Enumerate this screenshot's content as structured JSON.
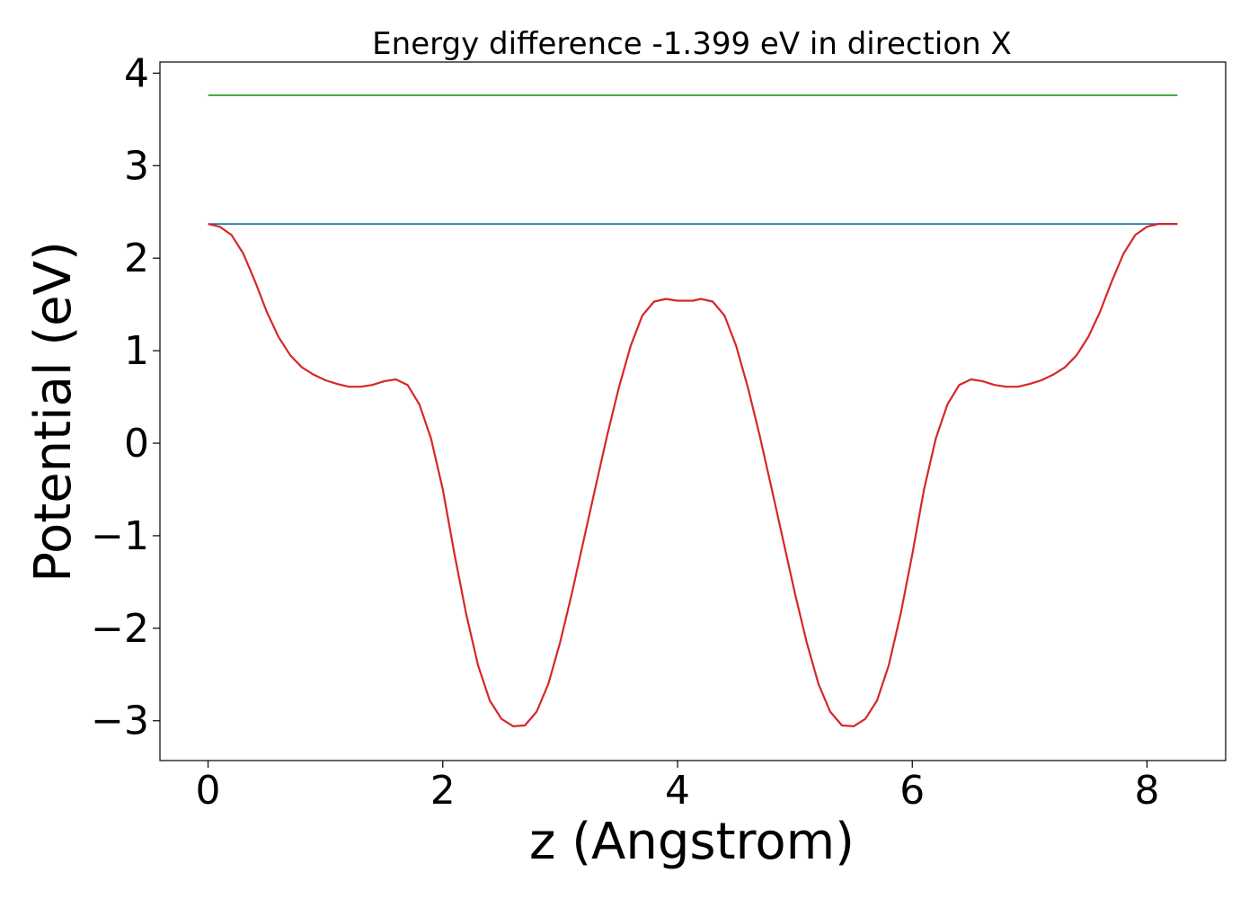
{
  "chart_data": {
    "type": "line",
    "title": "Energy difference -1.399 eV in direction X",
    "xlabel": "z (Angstrom)",
    "ylabel": "Potential (eV)",
    "xlim": [
      -0.41,
      8.67
    ],
    "ylim": [
      -3.43,
      4.12
    ],
    "xticks": [
      0,
      2,
      4,
      6,
      8
    ],
    "yticks": [
      -3,
      -2,
      -1,
      0,
      1,
      2,
      3,
      4
    ],
    "xtick_labels": [
      "0",
      "2",
      "4",
      "6",
      "8"
    ],
    "ytick_labels": [
      "−3",
      "−2",
      "−1",
      "0",
      "1",
      "2",
      "3",
      "4"
    ],
    "grid": false,
    "series": [
      {
        "color": "#2ca02c",
        "x": [
          0,
          8.26
        ],
        "y": [
          3.76,
          3.76
        ]
      },
      {
        "color": "#1f77b4",
        "x": [
          0,
          8.26
        ],
        "y": [
          2.37,
          2.37
        ]
      },
      {
        "color": "#d62728",
        "x": [
          0.0,
          0.1,
          0.2,
          0.3,
          0.4,
          0.5,
          0.6,
          0.7,
          0.8,
          0.9,
          1.0,
          1.1,
          1.2,
          1.3,
          1.4,
          1.5,
          1.6,
          1.7,
          1.8,
          1.9,
          2.0,
          2.1,
          2.2,
          2.3,
          2.4,
          2.5,
          2.6,
          2.7,
          2.8,
          2.9,
          3.0,
          3.1,
          3.2,
          3.3,
          3.4,
          3.5,
          3.6,
          3.7,
          3.8,
          3.9,
          4.0,
          4.13,
          4.2,
          4.3,
          4.4,
          4.5,
          4.6,
          4.7,
          4.8,
          4.9,
          5.0,
          5.1,
          5.2,
          5.3,
          5.4,
          5.5,
          5.6,
          5.7,
          5.8,
          5.9,
          6.0,
          6.1,
          6.2,
          6.3,
          6.4,
          6.5,
          6.6,
          6.7,
          6.8,
          6.9,
          7.0,
          7.1,
          7.2,
          7.3,
          7.4,
          7.5,
          7.6,
          7.7,
          7.8,
          7.9,
          8.0,
          8.1,
          8.26
        ],
        "y": [
          2.37,
          2.34,
          2.25,
          2.05,
          1.75,
          1.42,
          1.15,
          0.95,
          0.82,
          0.74,
          0.68,
          0.64,
          0.61,
          0.61,
          0.63,
          0.67,
          0.69,
          0.63,
          0.42,
          0.05,
          -0.5,
          -1.2,
          -1.85,
          -2.4,
          -2.78,
          -2.98,
          -3.06,
          -3.05,
          -2.9,
          -2.6,
          -2.15,
          -1.62,
          -1.05,
          -0.48,
          0.08,
          0.6,
          1.05,
          1.38,
          1.53,
          1.56,
          1.54,
          1.54,
          1.56,
          1.53,
          1.38,
          1.05,
          0.6,
          0.08,
          -0.48,
          -1.05,
          -1.62,
          -2.15,
          -2.6,
          -2.9,
          -3.05,
          -3.06,
          -2.98,
          -2.78,
          -2.4,
          -1.85,
          -1.2,
          -0.5,
          0.05,
          0.42,
          0.63,
          0.69,
          0.67,
          0.63,
          0.61,
          0.61,
          0.64,
          0.68,
          0.74,
          0.82,
          0.95,
          1.15,
          1.42,
          1.75,
          2.05,
          2.25,
          2.34,
          2.37,
          2.37
        ]
      }
    ]
  }
}
